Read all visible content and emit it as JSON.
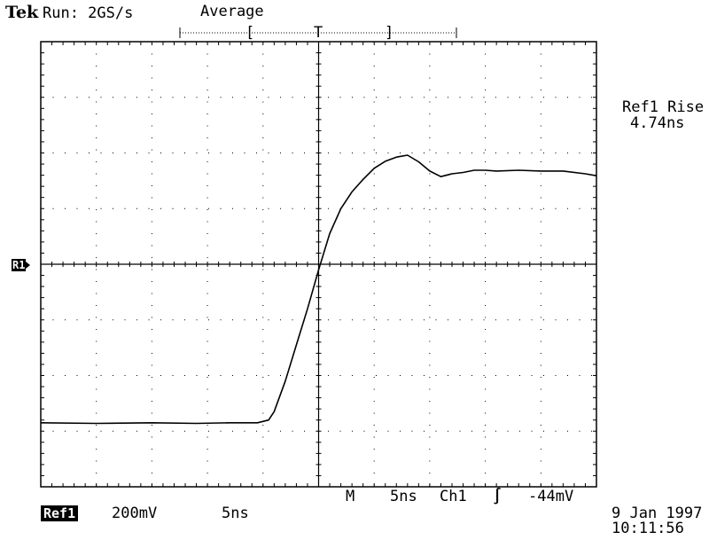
{
  "header": {
    "brand": "Tek",
    "run_status": "Run: 2GS/s",
    "acq_mode": "Average"
  },
  "trigger_bar": {
    "left_bracket": "[",
    "trigger_marker": "T",
    "right_bracket": "]"
  },
  "measurement": {
    "label": "Ref1 Rise",
    "value": "4.74ns"
  },
  "ref_marker": {
    "label": "R1"
  },
  "bottom": {
    "ref_label": "Ref1",
    "volts_div": "200mV",
    "time_div": "5ns",
    "main_label": "M",
    "main_time": "5ns",
    "trig_source": "Ch1",
    "slope_symbol": "∫",
    "trig_level": "-44mV"
  },
  "datetime": {
    "date": "9 Jan 1997",
    "time": "10:11:56"
  },
  "chart_data": {
    "type": "line",
    "title": "",
    "xlabel": "",
    "ylabel": "",
    "xlim": [
      -25,
      25
    ],
    "ylim": [
      -800,
      800
    ],
    "x_units": "ns",
    "y_units": "mV",
    "grid": true,
    "series": [
      {
        "x": [
          -25,
          -20,
          -15,
          -11,
          -8,
          -5.5,
          -4.5,
          -4,
          -3,
          -2,
          -1,
          0,
          1,
          2,
          3,
          4,
          5,
          6,
          7,
          8,
          9,
          10,
          11,
          12,
          13,
          14,
          15,
          16,
          18,
          20,
          22,
          24,
          25
        ],
        "y": [
          -570,
          -572,
          -570,
          -572,
          -570,
          -570,
          -560,
          -530,
          -420,
          -290,
          -160,
          -20,
          110,
          200,
          260,
          305,
          345,
          370,
          385,
          392,
          368,
          335,
          315,
          325,
          330,
          338,
          338,
          335,
          338,
          335,
          335,
          325,
          318
        ]
      }
    ]
  }
}
